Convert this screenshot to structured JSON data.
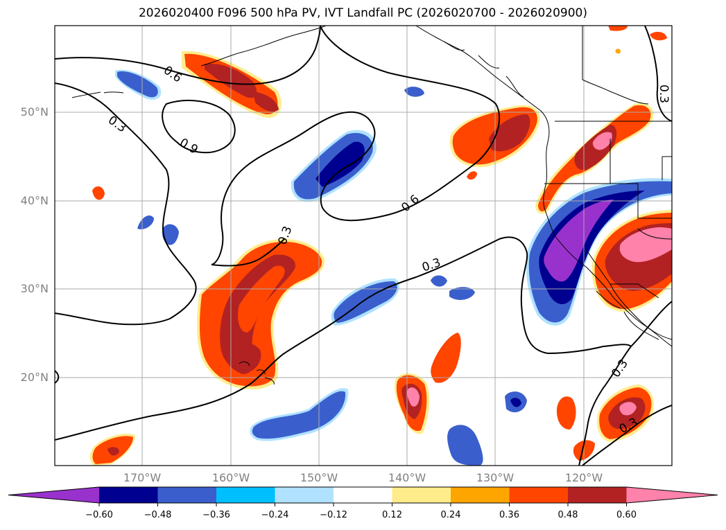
{
  "title": "2026020400 F096 500 hPa PV, IVT Landfall PC (2026020700 - 2026020900)",
  "lat_labels": [
    "50°N",
    "40°N",
    "30°N",
    "20°N"
  ],
  "lon_labels": [
    "170°W",
    "160°W",
    "150°W",
    "140°W",
    "130°W",
    "120°W"
  ],
  "contour_labels": [
    "0.6",
    "0.3",
    "0.9",
    "0.3",
    "0.6",
    "0.3",
    "0.3",
    "0.3",
    "0.3"
  ],
  "colorbar": {
    "ticks": [
      "−0.60",
      "−0.48",
      "−0.36",
      "−0.24",
      "−0.12",
      "0.12",
      "0.24",
      "0.36",
      "0.48",
      "0.60"
    ],
    "colors": [
      "#9932cc",
      "#000090",
      "#3a5fcd",
      "#00bfff",
      "#b0e2ff",
      "#ffffff",
      "#ffec8b",
      "#ffa500",
      "#ff4500",
      "#b22222",
      "#ff82ab"
    ]
  }
}
